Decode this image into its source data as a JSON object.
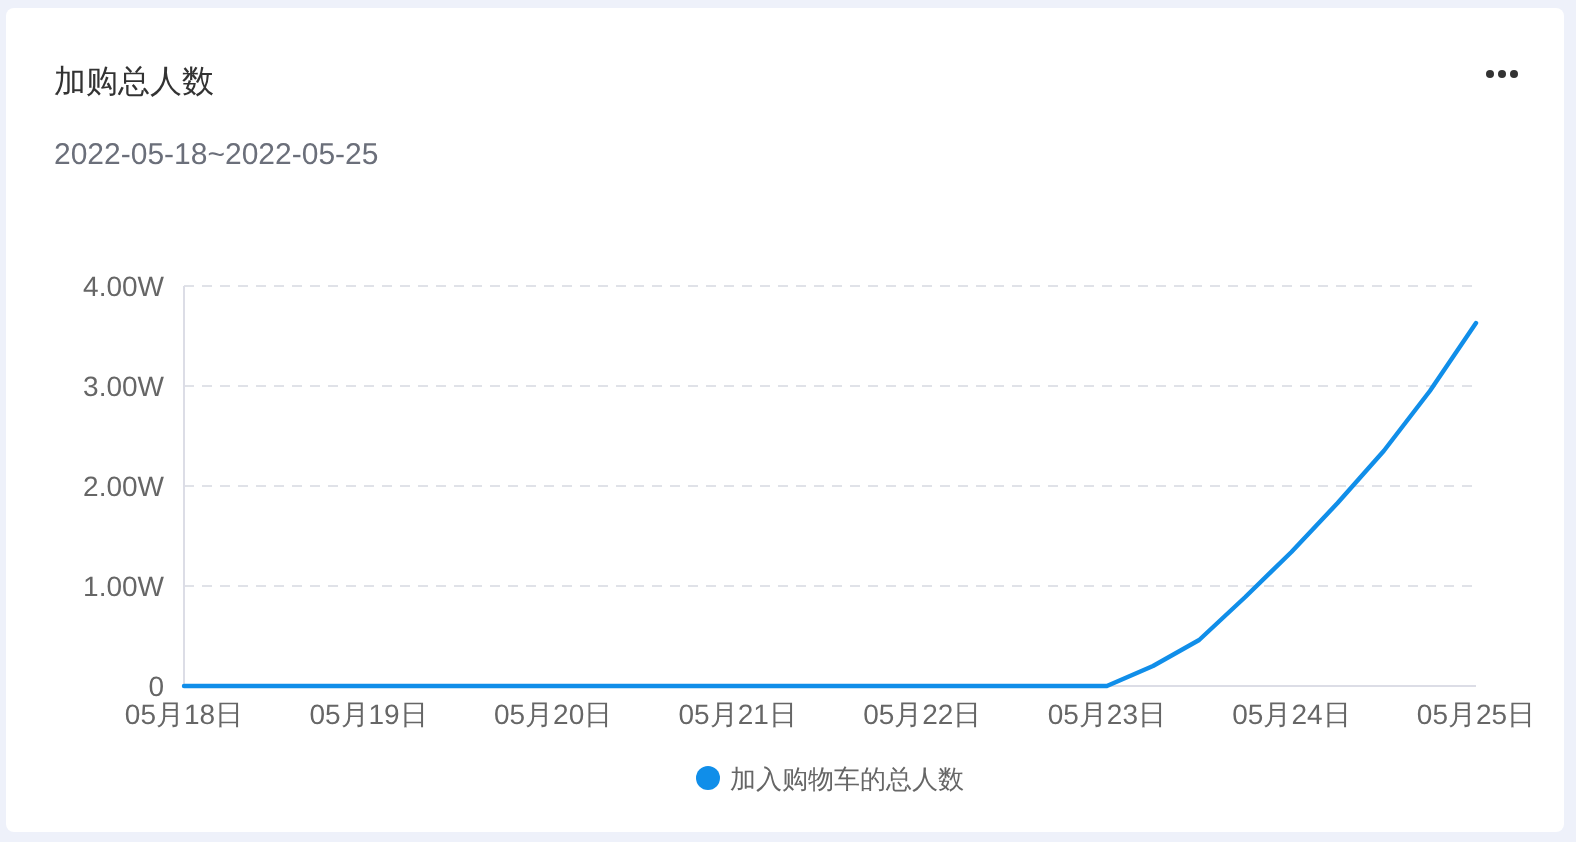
{
  "chart_data": {
    "type": "line",
    "title": "加购总人数",
    "subtitle": "2022-05-18~2022-05-25",
    "x": [
      "2022-05-18",
      "2022-05-19",
      "2022-05-20",
      "2022-05-21",
      "2022-05-22",
      "2022-05-23",
      "2022-05-23T06:00",
      "2022-05-23T12:00",
      "2022-05-23T18:00",
      "2022-05-24",
      "2022-05-24T06:00",
      "2022-05-24T12:00",
      "2022-05-24T18:00",
      "2022-05-25"
    ],
    "series": [
      {
        "name": "加入购物车的总人数",
        "color": "#108ee9",
        "values": [
          0,
          0,
          0,
          0,
          0,
          0,
          0.2,
          0.46,
          0.89,
          1.34,
          1.83,
          2.35,
          2.95,
          3.63
        ]
      }
    ],
    "xlim": [
      "2022-05-18",
      "2022-05-25"
    ],
    "xticks": [
      {
        "value": "2022-05-18",
        "label": "05月18日"
      },
      {
        "value": "2022-05-19",
        "label": "05月19日"
      },
      {
        "value": "2022-05-20",
        "label": "05月20日"
      },
      {
        "value": "2022-05-21",
        "label": "05月21日"
      },
      {
        "value": "2022-05-22",
        "label": "05月22日"
      },
      {
        "value": "2022-05-23",
        "label": "05月23日"
      },
      {
        "value": "2022-05-24",
        "label": "05月24日"
      },
      {
        "value": "2022-05-25",
        "label": "05月25日"
      }
    ],
    "ylim": [
      0,
      4
    ],
    "yticks": [
      0,
      {
        "value": 1,
        "label": "1.00W"
      },
      {
        "value": 2,
        "label": "2.00W"
      },
      {
        "value": 3,
        "label": "3.00W"
      },
      {
        "value": 4,
        "label": "4.00W"
      }
    ],
    "grid": "y",
    "legend": "bottom",
    "marker": "none",
    "line_style": "solid"
  }
}
